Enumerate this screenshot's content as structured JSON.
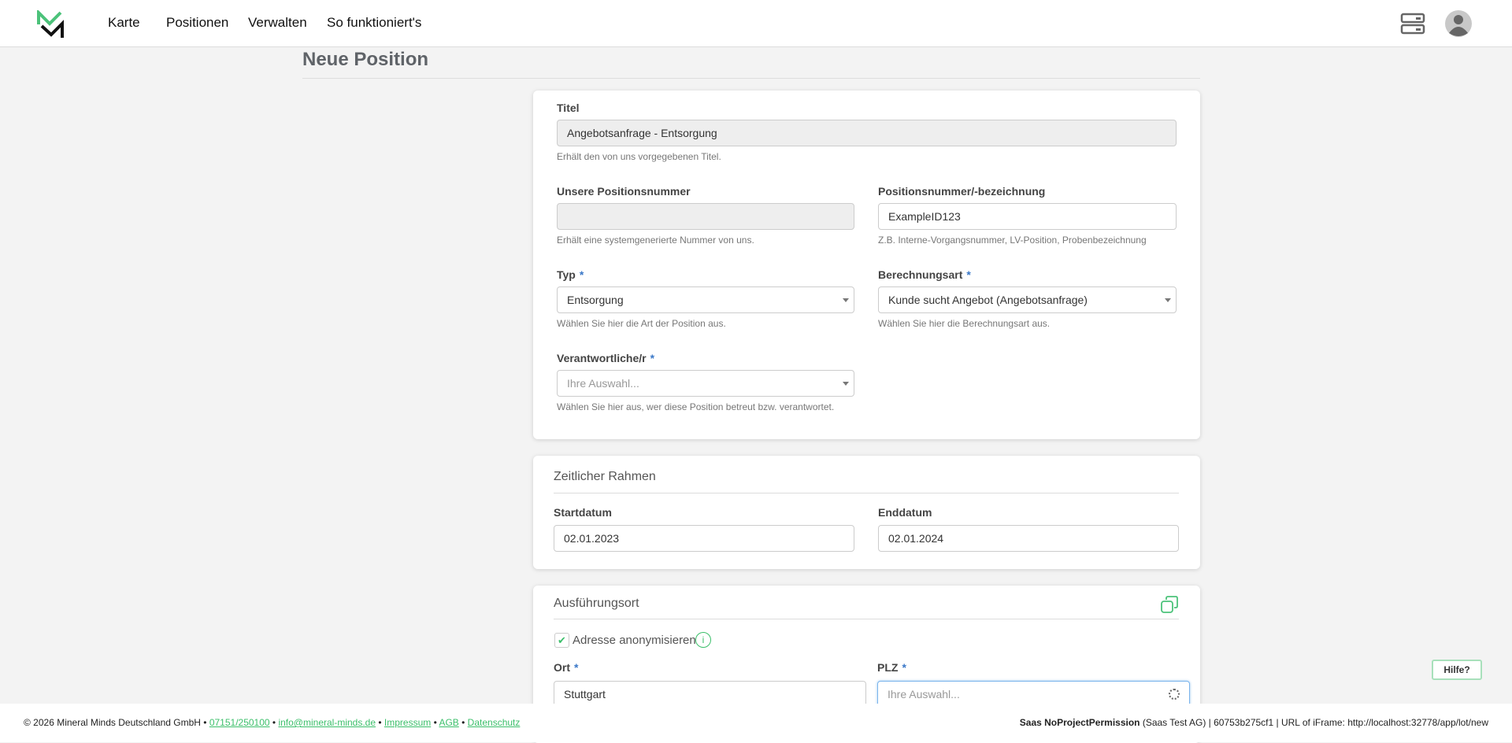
{
  "nav": {
    "items": [
      "Karte",
      "Positionen",
      "Verwalten",
      "So funktioniert's"
    ]
  },
  "page": {
    "title": "Neue Position"
  },
  "general": {
    "titel": {
      "label": "Titel",
      "value": "Angebotsanfrage - Entsorgung",
      "help": "Erhält den von uns vorgegebenen Titel."
    },
    "our_number": {
      "label": "Unsere Positionsnummer",
      "value": "",
      "help": "Erhält eine systemgenerierte Nummer von uns."
    },
    "position_id": {
      "label": "Positionsnummer/-bezeichnung",
      "value": "ExampleID123",
      "help": "Z.B. Interne-Vorgangsnummer, LV-Position, Probenbezeichnung"
    },
    "typ": {
      "label": "Typ",
      "required": "*",
      "value": "Entsorgung",
      "help": "Wählen Sie hier die Art der Position aus."
    },
    "berechnungsart": {
      "label": "Berechnungsart",
      "required": "*",
      "value": "Kunde sucht Angebot (Angebotsanfrage)",
      "help": "Wählen Sie hier die Berechnungsart aus."
    },
    "verantwortlich": {
      "label": "Verantwortliche/r",
      "required": "*",
      "placeholder": "Ihre Auswahl...",
      "help": "Wählen Sie hier aus, wer diese Position betreut bzw. verantwortet."
    }
  },
  "timeframe": {
    "title": "Zeitlicher Rahmen",
    "start": {
      "label": "Startdatum",
      "value": "02.01.2023"
    },
    "end": {
      "label": "Enddatum",
      "value": "02.01.2024"
    }
  },
  "location": {
    "title": "Ausführungsort",
    "anonymize": {
      "label": "Adresse anonymisieren",
      "checked": true
    },
    "ort": {
      "label": "Ort",
      "required": "*",
      "value": "Stuttgart"
    },
    "plz": {
      "label": "PLZ",
      "required": "*",
      "placeholder": "Ihre Auswahl..."
    }
  },
  "help_bubble": "Hilfe?",
  "footer": {
    "copyright": "© 2026 Mineral Minds Deutschland GmbH",
    "sep": " • ",
    "phone": "07151/250100",
    "email": "info@mineral-minds.de",
    "impressum": "Impressum",
    "agb": "AGB",
    "datenschutz": "Datenschutz",
    "user": "Saas NoProjectPermission",
    "company": " (Saas Test AG) | 60753b275cf1 | URL of iFrame: http://localhost:32778/app/lot/new"
  },
  "colors": {
    "accent": "#3bbf6a",
    "required": "#3a78c8"
  }
}
